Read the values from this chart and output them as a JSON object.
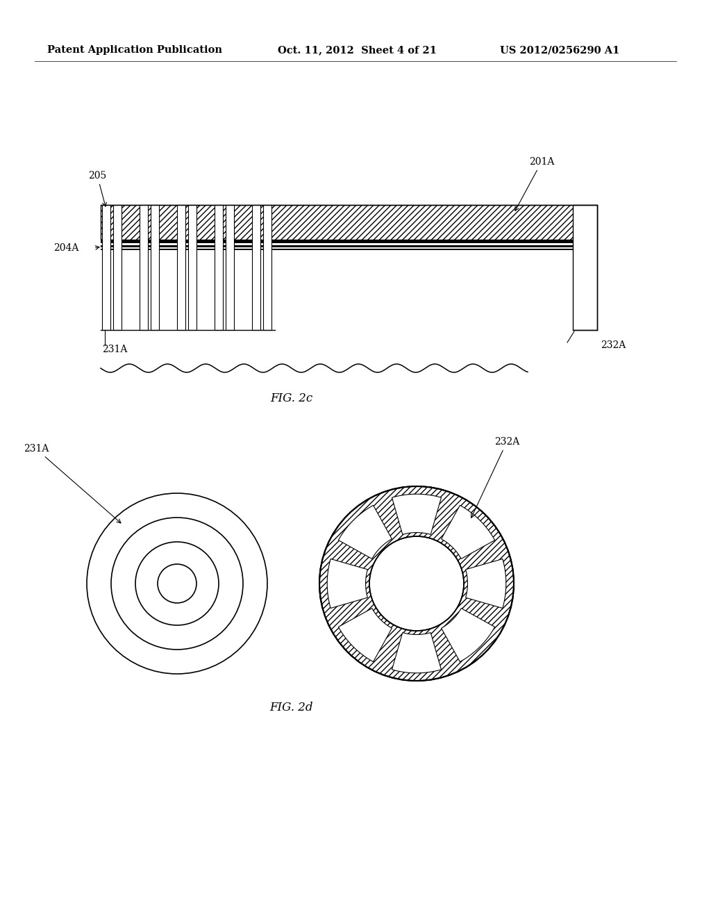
{
  "bg_color": "#ffffff",
  "header_left": "Patent Application Publication",
  "header_mid": "Oct. 11, 2012  Sheet 4 of 21",
  "header_right": "US 2012/0256290 A1",
  "fig2c_label": "FIG. 2c",
  "fig2d_label": "FIG. 2d"
}
